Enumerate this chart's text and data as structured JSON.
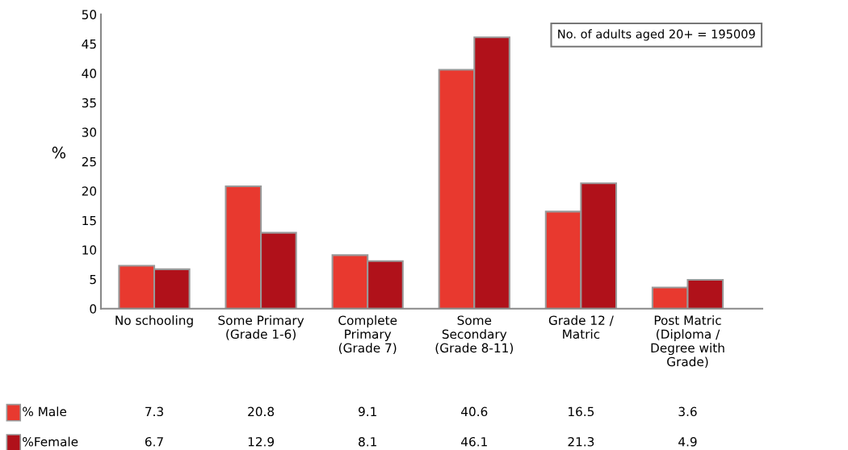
{
  "chart_data": {
    "type": "bar",
    "ylabel": "%",
    "categories": [
      "No schooling",
      "Some Primary\n(Grade 1-6)",
      "Complete\nPrimary\n(Grade 7)",
      "Some\nSecondary\n(Grade 8-11)",
      "Grade 12 /\nMatric",
      "Post Matric\n(Diploma /\nDegree with\nGrade)"
    ],
    "series": [
      {
        "name": "% Male",
        "color": "#e8392f",
        "values": [
          7.3,
          20.8,
          9.1,
          40.6,
          16.5,
          3.6
        ]
      },
      {
        "name": "%Female",
        "color": "#b0111a",
        "values": [
          6.7,
          12.9,
          8.1,
          46.1,
          21.3,
          4.9
        ]
      }
    ],
    "ylim": [
      0,
      50
    ],
    "yticks": [
      0,
      5,
      10,
      15,
      20,
      25,
      30,
      35,
      40,
      45,
      50
    ],
    "annotations": [
      "No. of adults aged 20+ = 195009"
    ],
    "data_labels": true,
    "legend": "bottom left",
    "grid": false
  }
}
